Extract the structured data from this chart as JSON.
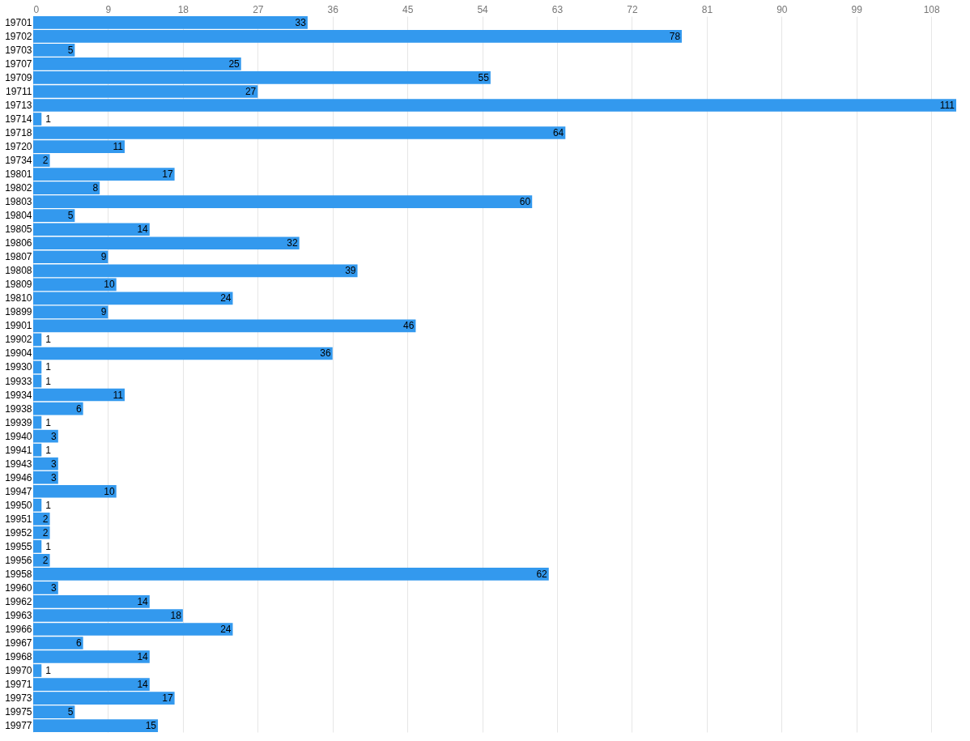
{
  "chart_data": {
    "type": "bar",
    "orientation": "horizontal",
    "data_labels": true,
    "grid": "x",
    "categories": [
      "19701",
      "19702",
      "19703",
      "19707",
      "19709",
      "19711",
      "19713",
      "19714",
      "19718",
      "19720",
      "19734",
      "19801",
      "19802",
      "19803",
      "19804",
      "19805",
      "19806",
      "19807",
      "19808",
      "19809",
      "19810",
      "19899",
      "19901",
      "19902",
      "19904",
      "19930",
      "19933",
      "19934",
      "19938",
      "19939",
      "19940",
      "19941",
      "19943",
      "19946",
      "19947",
      "19950",
      "19951",
      "19952",
      "19955",
      "19956",
      "19958",
      "19960",
      "19962",
      "19963",
      "19966",
      "19967",
      "19968",
      "19970",
      "19971",
      "19973",
      "19975",
      "19977"
    ],
    "values": [
      33,
      78,
      5,
      25,
      55,
      27,
      111,
      1,
      64,
      11,
      2,
      17,
      8,
      60,
      5,
      14,
      32,
      9,
      39,
      10,
      24,
      9,
      46,
      1,
      36,
      1,
      1,
      11,
      6,
      1,
      3,
      1,
      3,
      3,
      10,
      1,
      2,
      2,
      1,
      2,
      62,
      3,
      14,
      18,
      24,
      6,
      14,
      1,
      14,
      17,
      5,
      15
    ],
    "color": "#3399ee",
    "xlim": [
      0,
      111
    ],
    "xticks": [
      0,
      9,
      18,
      27,
      36,
      45,
      54,
      63,
      72,
      81,
      90,
      99,
      108
    ]
  }
}
